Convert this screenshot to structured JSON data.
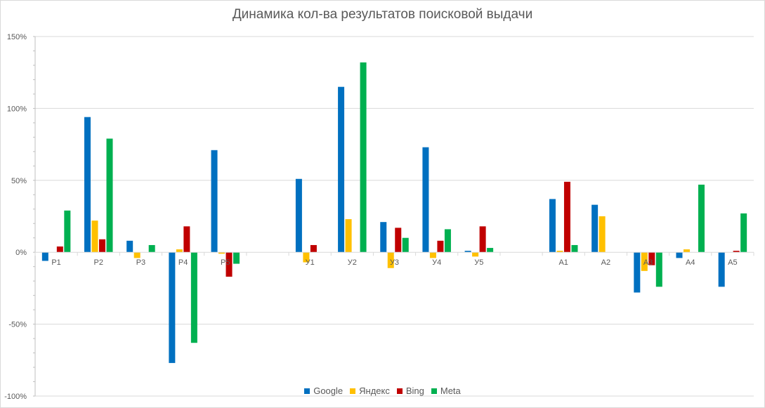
{
  "chart_data": {
    "type": "bar",
    "title": "Динамика кол-ва результатов поисковой выдачи",
    "xlabel": "",
    "ylabel": "",
    "ylim": [
      -1.0,
      1.5
    ],
    "y_ticks": [
      "150%",
      "100%",
      "50%",
      "0%",
      "-50%",
      "-100%"
    ],
    "y_tick_values": [
      1.5,
      1.0,
      0.5,
      0.0,
      -0.5,
      -1.0
    ],
    "grid": true,
    "legend_position": "bottom",
    "categories": [
      "Р1",
      "Р2",
      "Р3",
      "Р4",
      "Р5",
      "",
      "У1",
      "У2",
      "У3",
      "У4",
      "У5",
      "",
      "А1",
      "А2",
      "А3",
      "А4",
      "А5"
    ],
    "series": [
      {
        "name": "Google",
        "color": "#0070c0",
        "values": [
          -0.06,
          0.94,
          0.08,
          -0.77,
          0.71,
          null,
          0.51,
          1.15,
          0.21,
          0.73,
          0.01,
          null,
          0.37,
          0.33,
          -0.28,
          -0.04,
          -0.24
        ]
      },
      {
        "name": "Яндекс",
        "color": "#ffc000",
        "values": [
          0.0,
          0.22,
          -0.04,
          0.02,
          -0.01,
          null,
          -0.07,
          0.23,
          -0.11,
          -0.04,
          -0.03,
          null,
          0.01,
          0.25,
          -0.13,
          0.02,
          0.0
        ]
      },
      {
        "name": "Bing",
        "color": "#c00000",
        "values": [
          0.04,
          0.09,
          0.0,
          0.18,
          -0.17,
          null,
          0.05,
          0.0,
          0.17,
          0.08,
          0.18,
          null,
          0.49,
          0.0,
          -0.09,
          0.0,
          0.01
        ]
      },
      {
        "name": "Meta",
        "color": "#00b050",
        "values": [
          0.29,
          0.79,
          0.05,
          -0.63,
          -0.08,
          null,
          0.0,
          1.32,
          0.1,
          0.16,
          0.03,
          null,
          0.05,
          0.0,
          -0.24,
          0.47,
          0.27
        ]
      }
    ]
  }
}
